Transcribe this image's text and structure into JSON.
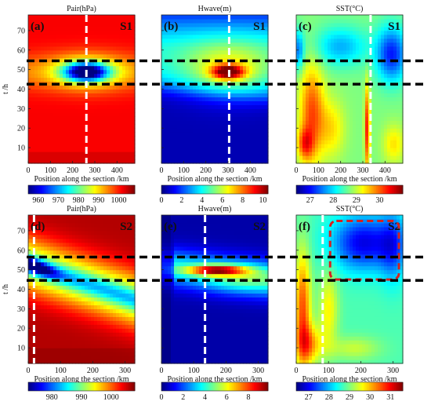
{
  "chart_data": {
    "type": "heatmap",
    "ylabel": "t /h",
    "xlabel": "Position along the section /km",
    "rows": [
      {
        "section": "S1",
        "ylim": [
          2,
          78
        ],
        "yticks": [
          10,
          20,
          30,
          40,
          50,
          60,
          70
        ],
        "black_dashed_t": [
          54.5,
          42.5
        ],
        "panels": [
          {
            "letter": "(a)",
            "title": "Pair(hPa)",
            "section": "S1",
            "xlim": [
              0,
              480
            ],
            "xticks": [
              0,
              100,
              200,
              300,
              400
            ],
            "white_dashed_x": 262,
            "colorbar": {
              "min": 955,
              "max": 1008,
              "ticks": [
                960,
                970,
                980,
                990,
                1000
              ]
            },
            "field": "pressure",
            "eye": {
              "x": 262,
              "t": 49,
              "depth": 1.0
            }
          },
          {
            "letter": "(b)",
            "title": "Hwave(m)",
            "section": "S1",
            "xlim": [
              0,
              480
            ],
            "xticks": [
              0,
              100,
              200,
              300,
              400
            ],
            "white_dashed_x": 305,
            "colorbar": {
              "min": 0,
              "max": 10.5,
              "ticks": [
                0,
                2,
                4,
                6,
                8,
                10
              ]
            },
            "field": "wave",
            "eye": {
              "x": 300,
              "t": 49
            }
          },
          {
            "letter": "(c)",
            "title": "SST(°C)",
            "section": "S1",
            "xlim": [
              0,
              480
            ],
            "xticks": [
              0,
              100,
              200,
              300,
              400
            ],
            "white_dashed_x": 335,
            "colorbar": {
              "min": 26.4,
              "max": 31.0,
              "ticks": [
                27,
                28,
                29,
                30
              ]
            },
            "field": "sst"
          }
        ]
      },
      {
        "section": "S2",
        "ylim": [
          2,
          78
        ],
        "yticks": [
          10,
          20,
          30,
          40,
          50,
          60,
          70
        ],
        "black_dashed_t": [
          56.5,
          44.5
        ],
        "panels": [
          {
            "letter": "(d)",
            "title": "Pair(hPa)",
            "section": "S2",
            "xlim": [
              0,
              330
            ],
            "xticks": [
              0,
              100,
              200,
              300
            ],
            "white_dashed_x": 18,
            "colorbar": {
              "min": 972,
              "max": 1008,
              "ticks": [
                980,
                990,
                1000
              ]
            },
            "field": "pressure2",
            "eye": {
              "x": 20,
              "t": 53
            }
          },
          {
            "letter": "(e)",
            "title": "Hwave(m)",
            "section": "S2",
            "xlim": [
              0,
              330
            ],
            "xticks": [
              0,
              100,
              200,
              300
            ],
            "white_dashed_x": 135,
            "colorbar": {
              "min": 0,
              "max": 9.8,
              "ticks": [
                0,
                2,
                4,
                6,
                8
              ]
            },
            "field": "wave2",
            "eye": {
              "x": 150,
              "t": 50
            }
          },
          {
            "letter": "(f)",
            "title": "SST(°C)",
            "section": "S2",
            "xlim": [
              0,
              330
            ],
            "xticks": [
              0,
              100,
              200,
              300
            ],
            "white_dashed_x": 82,
            "colorbar": {
              "min": 26.4,
              "max": 31.6,
              "ticks": [
                27,
                28,
                29,
                30,
                31
              ]
            },
            "field": "sst2",
            "red_box": {
              "x0": 105,
              "x1": 318,
              "t0": 45,
              "t1": 75
            }
          }
        ]
      }
    ]
  }
}
